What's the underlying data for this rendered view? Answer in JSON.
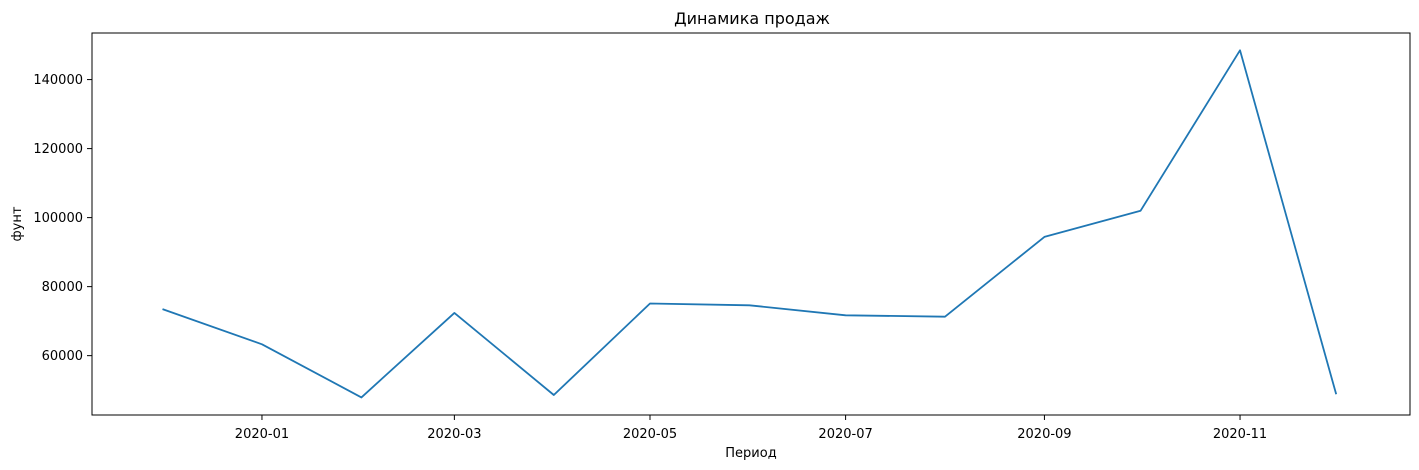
{
  "chart_data": {
    "type": "line",
    "title": "Динамика продаж",
    "xlabel": "Период",
    "ylabel": "фунт",
    "grid": false,
    "x": [
      "2019-12-01",
      "2020-01-01",
      "2020-02-01",
      "2020-03-01",
      "2020-04-01",
      "2020-05-01",
      "2020-06-01",
      "2020-07-01",
      "2020-08-01",
      "2020-09-01",
      "2020-10-01",
      "2020-11-01",
      "2020-12-01"
    ],
    "series": [
      {
        "values": [
          73500,
          63300,
          47900,
          72400,
          48600,
          75100,
          74600,
          71700,
          71300,
          94400,
          102000,
          148500,
          48800
        ],
        "color": "#1f77b4"
      }
    ],
    "xlim": [
      "2019-11-09",
      "2020-12-24"
    ],
    "ylim": [
      42800,
      153500
    ],
    "x_ticks": [
      "2020-01",
      "2020-03",
      "2020-05",
      "2020-07",
      "2020-09",
      "2020-11"
    ],
    "y_ticks": [
      60000,
      80000,
      100000,
      120000,
      140000
    ]
  }
}
